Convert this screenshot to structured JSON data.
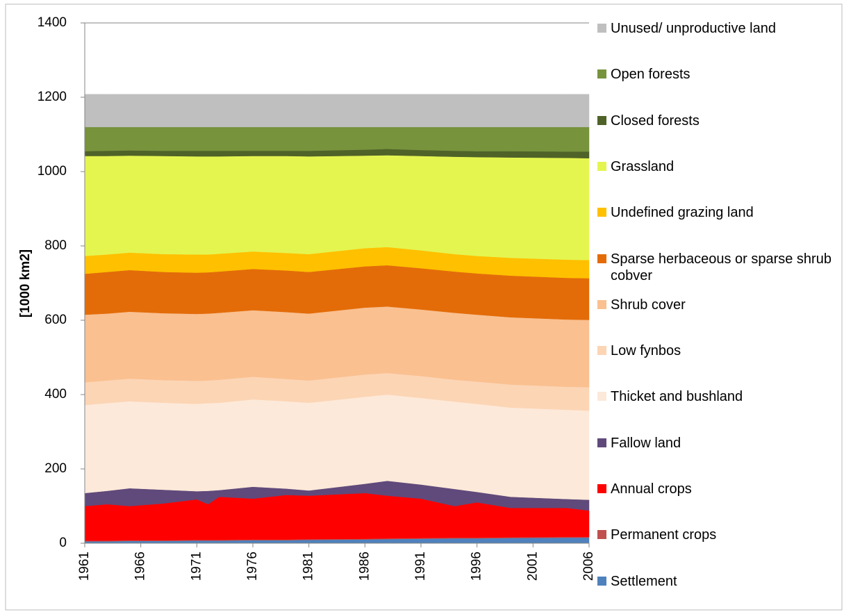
{
  "chart_data": {
    "type": "stacked-area",
    "y_label": "[1000 km2]",
    "x": [
      1961,
      1963,
      1965,
      1968,
      1971,
      1972,
      1973,
      1976,
      1979,
      1981,
      1986,
      1988,
      1991,
      1994,
      1996,
      1999,
      2004,
      2006
    ],
    "xlim": [
      1961,
      2006
    ],
    "xticks": [
      1961,
      1966,
      1971,
      1976,
      1981,
      1986,
      1991,
      1996,
      2001,
      2006
    ],
    "ylim": [
      0,
      1400
    ],
    "yticks": [
      0,
      200,
      400,
      600,
      800,
      1000,
      1200,
      1400
    ],
    "legend": "right",
    "series": [
      {
        "name": "Settlement",
        "color": "#4f81bd",
        "values": [
          5,
          5,
          6,
          6,
          7,
          7,
          7,
          8,
          8,
          9,
          10,
          11,
          12,
          13,
          13,
          14,
          15,
          15
        ]
      },
      {
        "name": "Permanent crops",
        "color": "#c0504d",
        "values": [
          2,
          2,
          2,
          2,
          2,
          2,
          2,
          2,
          2,
          2,
          2,
          2,
          2,
          2,
          2,
          2,
          2,
          2
        ]
      },
      {
        "name": "Annual crops",
        "color": "#ff0000",
        "values": [
          93,
          98,
          92,
          99,
          109,
          96,
          116,
          110,
          120,
          117,
          123,
          115,
          106,
          85,
          95,
          79,
          78,
          71
        ]
      },
      {
        "name": "Fallow land",
        "color": "#604a7b",
        "values": [
          35,
          36,
          48,
          37,
          22,
          36,
          18,
          32,
          17,
          14,
          25,
          40,
          38,
          46,
          28,
          30,
          24,
          29
        ]
      },
      {
        "name": "Thicket and bushland",
        "color": "#fde9d9",
        "values": [
          237,
          236,
          234,
          234,
          235,
          236,
          235,
          235,
          235,
          236,
          234,
          232,
          233,
          235,
          237,
          240,
          240,
          240
        ]
      },
      {
        "name": "Low fynbos",
        "color": "#fcd5b5",
        "values": [
          61,
          61,
          61,
          61,
          62,
          61,
          62,
          61,
          60,
          60,
          60,
          58,
          59,
          59,
          60,
          62,
          62,
          63
        ]
      },
      {
        "name": "Shrub cover",
        "color": "#fac090",
        "values": [
          182,
          180,
          180,
          180,
          180,
          180,
          180,
          179,
          180,
          180,
          180,
          179,
          179,
          180,
          180,
          181,
          181,
          181
        ]
      },
      {
        "name": "Sparse herbaceous or sparse shrub cobver",
        "color": "#e36c09",
        "values": [
          110,
          112,
          112,
          111,
          111,
          111,
          111,
          111,
          112,
          112,
          111,
          111,
          111,
          111,
          111,
          112,
          112,
          112
        ]
      },
      {
        "name": "Undefined grazing land",
        "color": "#ffc000",
        "values": [
          48,
          47,
          47,
          48,
          49,
          48,
          48,
          47,
          47,
          48,
          49,
          49,
          48,
          47,
          47,
          48,
          49,
          49
        ]
      },
      {
        "name": "Grassland",
        "color": "#e4f550",
        "values": [
          269,
          265,
          261,
          264,
          264,
          264,
          262,
          257,
          261,
          263,
          249,
          247,
          254,
          262,
          266,
          270,
          274,
          274
        ]
      },
      {
        "name": "Closed forests",
        "color": "#4f6228",
        "values": [
          13,
          14,
          14,
          14,
          15,
          15,
          15,
          14,
          14,
          15,
          16,
          17,
          16,
          16,
          16,
          17,
          17,
          18
        ]
      },
      {
        "name": "Open forests",
        "color": "#77933c",
        "values": [
          65,
          64,
          63,
          64,
          64,
          64,
          64,
          64,
          64,
          64,
          61,
          59,
          62,
          64,
          65,
          65,
          66,
          66
        ]
      },
      {
        "name": "Unused/ unproductive land",
        "color": "#bfbfbf",
        "values": [
          88,
          88,
          88,
          88,
          88,
          88,
          88,
          88,
          88,
          88,
          88,
          88,
          88,
          88,
          88,
          88,
          88,
          88
        ]
      }
    ]
  }
}
